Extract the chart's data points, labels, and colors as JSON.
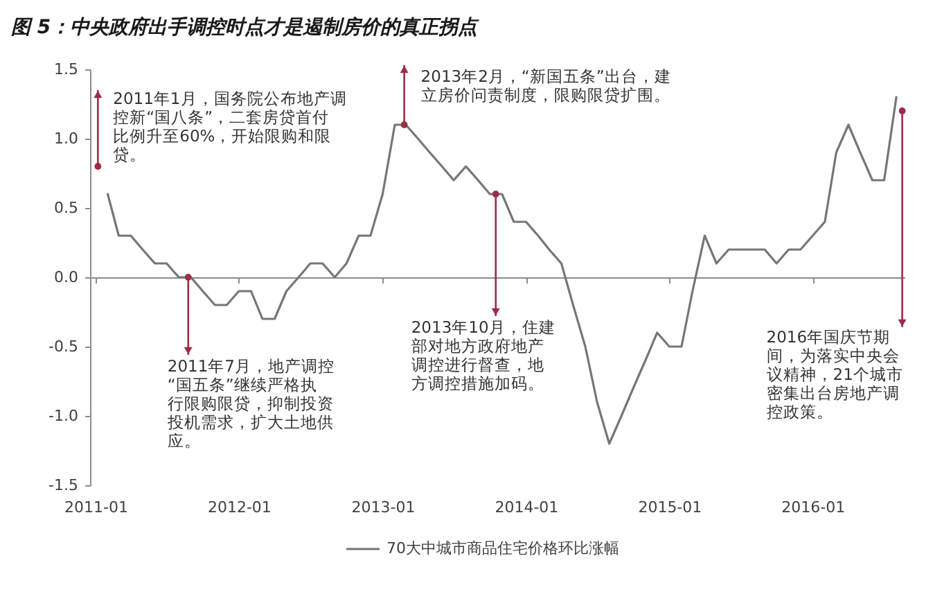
{
  "chart_data": {
    "type": "line",
    "title": "图 5：中央政府出手调控时点才是遏制房价的真正拐点",
    "x": [
      "2011-02",
      "2011-03",
      "2011-04",
      "2011-05",
      "2011-06",
      "2011-07",
      "2011-08",
      "2011-09",
      "2011-10",
      "2011-11",
      "2011-12",
      "2012-01",
      "2012-02",
      "2012-03",
      "2012-04",
      "2012-05",
      "2012-06",
      "2012-07",
      "2012-08",
      "2012-09",
      "2012-10",
      "2012-11",
      "2012-12",
      "2013-01",
      "2013-02",
      "2013-03",
      "2013-04",
      "2013-05",
      "2013-06",
      "2013-07",
      "2013-08",
      "2013-09",
      "2013-10",
      "2013-11",
      "2013-12",
      "2014-01",
      "2014-02",
      "2014-03",
      "2014-04",
      "2014-05",
      "2014-06",
      "2014-07",
      "2014-08",
      "2014-09",
      "2014-10",
      "2014-11",
      "2014-12",
      "2015-01",
      "2015-02",
      "2015-03",
      "2015-04",
      "2015-05",
      "2015-06",
      "2015-07",
      "2015-08",
      "2015-09",
      "2015-10",
      "2015-11",
      "2015-12",
      "2016-01",
      "2016-02",
      "2016-03",
      "2016-04",
      "2016-05",
      "2016-06",
      "2016-07",
      "2016-08"
    ],
    "xlim": [
      "2010-12-18",
      "2016-08-22"
    ],
    "xticks": [
      "2011-01",
      "2012-01",
      "2013-01",
      "2014-01",
      "2015-01",
      "2016-01"
    ],
    "ylim": [
      -1.5,
      1.5
    ],
    "yticks": [
      -1.5,
      {
        "value": -1,
        "label": "-1.0"
      },
      -0.5,
      {
        "value": 0,
        "label": "0.0"
      },
      0.5,
      {
        "value": 1,
        "label": "1.0"
      },
      1.5
    ],
    "legend": "bottom",
    "series": [
      {
        "name": "70大中城市商品住宅价格环比涨幅",
        "color": "#767676",
        "values": [
          0.6,
          0.3,
          0.3,
          0.2,
          0.1,
          0.1,
          0,
          0,
          -0.1,
          -0.2,
          -0.2,
          -0.1,
          -0.1,
          -0.3,
          -0.3,
          -0.1,
          0,
          0.1,
          0.1,
          0,
          0.1,
          0.3,
          0.3,
          0.6,
          1.1,
          1.1,
          1.0,
          0.9,
          0.8,
          0.7,
          0.8,
          0.7,
          0.6,
          0.6,
          0.4,
          0.4,
          0.3,
          0.2,
          0.1,
          -0.2,
          -0.5,
          -0.9,
          -1.2,
          -1.0,
          -0.8,
          -0.6,
          -0.4,
          -0.5,
          -0.5,
          -0.1,
          0.3,
          0.1,
          0.2,
          0.2,
          0.2,
          0.2,
          0.1,
          0.2,
          0.2,
          0.3,
          0.4,
          0.9,
          1.1,
          0.9,
          0.7,
          0.7,
          1.3
        ]
      }
    ],
    "annotations": [
      {
        "text": "2011年1月，国务院公布地产调控新“国八条”，二套房贷首付比例升至60%，开始限购和限贷。",
        "x": "2011-01-07",
        "y": 0.8
      },
      {
        "text": "2011年7月，地产调控“国五条”继续严格执行限购限贷，抑制投资投机需求，扩大土地供应。",
        "x": "2011-08-25",
        "y": 0.0
      },
      {
        "text": "2013年2月，“新国五条”出台，建立房价问责制度，限购限贷扩围。",
        "x": "2013-02-25",
        "y": 1.1
      },
      {
        "text": "2013年10月，住建部对地方政府地产调控进行督查，地方调控措施加码。",
        "x": "2013-10-16",
        "y": 0.6
      },
      {
        "text": "2016年国庆节期间，为落实中央会议精神，21个城市密集出台房地产调控政策。",
        "x": "2016-08-16",
        "y": 1.2
      }
    ]
  }
}
